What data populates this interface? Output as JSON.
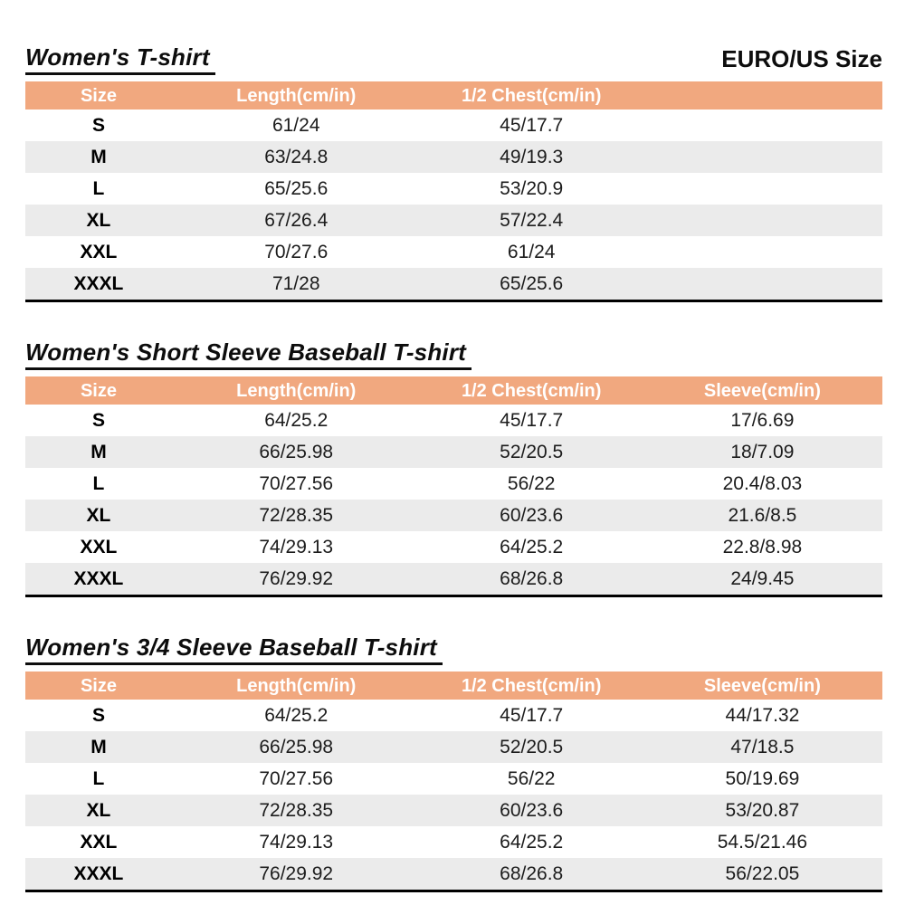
{
  "page": {
    "colors": {
      "header_bg": "#F1A87F",
      "header_text": "#FFFFFF",
      "stripe_bg": "#EBEBEB",
      "table_bottom_rule": "#000000"
    }
  },
  "tables": [
    {
      "title": "Women's T-shirt",
      "right_label": "EURO/US Size",
      "columns": [
        "Size",
        "Length(cm/in)",
        "1/2 Chest(cm/in)"
      ],
      "rows": [
        [
          "S",
          "61/24",
          "45/17.7"
        ],
        [
          "M",
          "63/24.8",
          "49/19.3"
        ],
        [
          "L",
          "65/25.6",
          "53/20.9"
        ],
        [
          "XL",
          "67/26.4",
          "57/22.4"
        ],
        [
          "XXL",
          "70/27.6",
          "61/24"
        ],
        [
          "XXXL",
          "71/28",
          "65/25.6"
        ]
      ]
    },
    {
      "title": "Women's Short Sleeve Baseball T-shirt",
      "columns": [
        "Size",
        "Length(cm/in)",
        "1/2 Chest(cm/in)",
        "Sleeve(cm/in)"
      ],
      "rows": [
        [
          "S",
          "64/25.2",
          "45/17.7",
          "17/6.69"
        ],
        [
          "M",
          "66/25.98",
          "52/20.5",
          "18/7.09"
        ],
        [
          "L",
          "70/27.56",
          "56/22",
          "20.4/8.03"
        ],
        [
          "XL",
          "72/28.35",
          "60/23.6",
          "21.6/8.5"
        ],
        [
          "XXL",
          "74/29.13",
          "64/25.2",
          "22.8/8.98"
        ],
        [
          "XXXL",
          "76/29.92",
          "68/26.8",
          "24/9.45"
        ]
      ]
    },
    {
      "title": "Women's 3/4 Sleeve Baseball T-shirt",
      "columns": [
        "Size",
        "Length(cm/in)",
        "1/2 Chest(cm/in)",
        "Sleeve(cm/in)"
      ],
      "rows": [
        [
          "S",
          "64/25.2",
          "45/17.7",
          "44/17.32"
        ],
        [
          "M",
          "66/25.98",
          "52/20.5",
          "47/18.5"
        ],
        [
          "L",
          "70/27.56",
          "56/22",
          "50/19.69"
        ],
        [
          "XL",
          "72/28.35",
          "60/23.6",
          "53/20.87"
        ],
        [
          "XXL",
          "74/29.13",
          "64/25.2",
          "54.5/21.46"
        ],
        [
          "XXXL",
          "76/29.92",
          "68/26.8",
          "56/22.05"
        ]
      ]
    }
  ]
}
